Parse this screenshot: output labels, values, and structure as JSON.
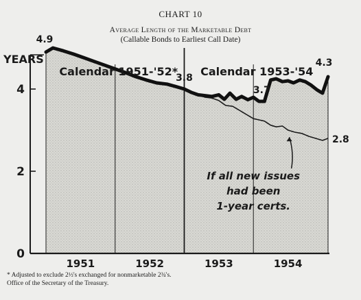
{
  "chart_data": {
    "type": "area",
    "title": "CHART 10",
    "subtitle_line1": "Average Length of the Marketable Debt",
    "subtitle_line2": "(Callable Bonds to Earliest Call Date)",
    "ylabel": "YEARS",
    "ylim": [
      0,
      5
    ],
    "xlim": [
      1950.5,
      1954.58
    ],
    "yticks": [
      "0",
      "2",
      "4"
    ],
    "xticks": [
      "1951",
      "1952",
      "1953",
      "1954"
    ],
    "periods": [
      "Calendar 1951-'52*",
      "Calendar 1953-'54"
    ],
    "series": [
      {
        "x": [
          1950.5,
          1950.6,
          1950.75,
          1950.9,
          1951.05,
          1951.2,
          1951.35,
          1951.5,
          1951.65,
          1951.8,
          1951.95,
          1952.1,
          1952.25,
          1952.4,
          1952.5,
          1952.6,
          1952.7,
          1952.8,
          1952.9,
          1953.0,
          1953.08,
          1953.16,
          1953.25,
          1953.33,
          1953.42,
          1953.5,
          1953.58,
          1953.66,
          1953.75,
          1953.83,
          1953.92,
          1954.0,
          1954.08,
          1954.17,
          1954.25,
          1954.33,
          1954.42,
          1954.5,
          1954.58
        ],
        "values": [
          4.9,
          5.0,
          4.93,
          4.85,
          4.76,
          4.67,
          4.58,
          4.49,
          4.4,
          4.3,
          4.22,
          4.15,
          4.12,
          4.05,
          4.0,
          3.92,
          3.86,
          3.84,
          3.82,
          3.86,
          3.75,
          3.9,
          3.75,
          3.82,
          3.74,
          3.8,
          3.7,
          3.7,
          4.22,
          4.25,
          4.18,
          4.2,
          4.15,
          4.22,
          4.18,
          4.1,
          3.98,
          3.9,
          4.3
        ]
      },
      {
        "x": [
          1952.7,
          1952.8,
          1952.9,
          1953.0,
          1953.1,
          1953.2,
          1953.3,
          1953.4,
          1953.5,
          1953.58,
          1953.66,
          1953.75,
          1953.83,
          1953.92,
          1954.0,
          1954.1,
          1954.2,
          1954.3,
          1954.4,
          1954.5,
          1954.58
        ],
        "values": [
          3.86,
          3.8,
          3.78,
          3.72,
          3.6,
          3.58,
          3.48,
          3.38,
          3.28,
          3.25,
          3.22,
          3.12,
          3.08,
          3.1,
          3.0,
          2.95,
          2.92,
          2.85,
          2.8,
          2.75,
          2.8
        ]
      }
    ],
    "annotations": [
      {
        "text": "4.9"
      },
      {
        "text": "3.8"
      },
      {
        "text": "3.7"
      },
      {
        "text": "4.3"
      },
      {
        "text": "2.8"
      },
      {
        "lines": [
          "If all new issues",
          "had been",
          "1-year certs."
        ]
      }
    ],
    "footnote": [
      "* Adjusted to exclude 2½'s exchanged for nonmarketable 2¾'s.",
      "Office of the Secretary of the Treasury."
    ]
  }
}
